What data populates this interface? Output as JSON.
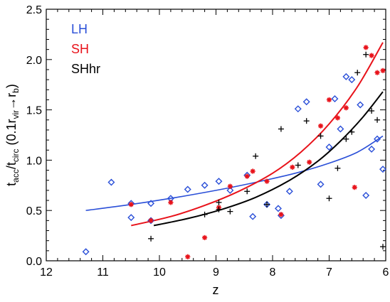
{
  "chart_data": {
    "type": "scatter",
    "title": "",
    "xlabel": "z",
    "ylabel": {
      "main": "t",
      "sub1": "acc",
      "slash": "/t",
      "sub2": "circ",
      "paren_open": " (0.1r",
      "sub3": "vir",
      "arrow": "→r",
      "sub4": "b",
      "paren_close": ")"
    },
    "xlim": [
      12,
      6
    ],
    "ylim": [
      0,
      2.5
    ],
    "xticks": [
      12,
      11,
      10,
      9,
      8,
      7,
      6
    ],
    "xtick_labels": [
      "12",
      "11",
      "10",
      "9",
      "8",
      "7",
      "6"
    ],
    "yticks": [
      0,
      0.5,
      1,
      1.5,
      2,
      2.5
    ],
    "ytick_labels": [
      "0.0",
      "0.5",
      "1.0",
      "1.5",
      "2.0",
      "2.5"
    ],
    "legend_position": "top-left",
    "series": [
      {
        "name": "LH",
        "color": "#2a4fd8",
        "marker": "diamond",
        "points": [
          [
            11.3,
            0.09
          ],
          [
            10.85,
            0.78
          ],
          [
            10.5,
            0.57
          ],
          [
            10.5,
            0.43
          ],
          [
            10.15,
            0.4
          ],
          [
            10.15,
            0.57
          ],
          [
            9.8,
            0.62
          ],
          [
            9.5,
            0.71
          ],
          [
            9.2,
            0.75
          ],
          [
            8.95,
            0.79
          ],
          [
            8.75,
            0.7
          ],
          [
            8.45,
            0.85
          ],
          [
            8.35,
            0.44
          ],
          [
            8.1,
            0.56
          ],
          [
            7.9,
            0.52
          ],
          [
            7.85,
            0.45
          ],
          [
            7.7,
            0.69
          ],
          [
            7.55,
            1.51
          ],
          [
            7.4,
            1.58
          ],
          [
            7.15,
            0.76
          ],
          [
            7.0,
            1.13
          ],
          [
            6.9,
            1.61
          ],
          [
            6.8,
            1.31
          ],
          [
            6.7,
            1.83
          ],
          [
            6.6,
            1.8
          ],
          [
            6.45,
            1.55
          ],
          [
            6.35,
            0.65
          ],
          [
            6.25,
            1.11
          ],
          [
            6.15,
            1.21
          ],
          [
            6.05,
            0.91
          ]
        ],
        "fit": [
          [
            11.3,
            0.5
          ],
          [
            10.5,
            0.56
          ],
          [
            9.7,
            0.63
          ],
          [
            9.0,
            0.7
          ],
          [
            8.3,
            0.78
          ],
          [
            7.6,
            0.87
          ],
          [
            7.0,
            0.97
          ],
          [
            6.5,
            1.08
          ],
          [
            6.05,
            1.24
          ]
        ]
      },
      {
        "name": "SH",
        "color": "#e8121a",
        "marker": "asterisk",
        "points": [
          [
            10.5,
            0.56
          ],
          [
            10.15,
            0.4
          ],
          [
            9.8,
            0.58
          ],
          [
            9.5,
            0.04
          ],
          [
            9.2,
            0.23
          ],
          [
            8.95,
            0.53
          ],
          [
            8.75,
            0.74
          ],
          [
            8.45,
            0.84
          ],
          [
            8.35,
            0.89
          ],
          [
            8.1,
            0.79
          ],
          [
            7.85,
            0.46
          ],
          [
            7.65,
            0.93
          ],
          [
            7.35,
            0.98
          ],
          [
            7.15,
            1.34
          ],
          [
            7.0,
            1.6
          ],
          [
            6.85,
            1.42
          ],
          [
            6.7,
            1.52
          ],
          [
            6.55,
            0.73
          ],
          [
            6.35,
            2.12
          ],
          [
            6.25,
            2.04
          ],
          [
            6.15,
            1.87
          ],
          [
            6.05,
            1.89
          ]
        ],
        "fit": [
          [
            10.5,
            0.35
          ],
          [
            9.8,
            0.44
          ],
          [
            9.2,
            0.55
          ],
          [
            8.6,
            0.69
          ],
          [
            8.0,
            0.87
          ],
          [
            7.5,
            1.08
          ],
          [
            7.0,
            1.36
          ],
          [
            6.5,
            1.73
          ],
          [
            6.05,
            2.17
          ]
        ]
      },
      {
        "name": "SHhr",
        "color": "#000000",
        "marker": "plus",
        "points": [
          [
            10.15,
            0.22
          ],
          [
            9.2,
            0.46
          ],
          [
            8.95,
            0.58
          ],
          [
            8.95,
            0.51
          ],
          [
            8.75,
            0.49
          ],
          [
            8.45,
            0.69
          ],
          [
            8.3,
            1.04
          ],
          [
            8.1,
            0.56
          ],
          [
            7.85,
            1.31
          ],
          [
            7.55,
            0.95
          ],
          [
            7.4,
            1.39
          ],
          [
            7.15,
            1.24
          ],
          [
            7.0,
            0.62
          ],
          [
            6.85,
            0.92
          ],
          [
            6.7,
            1.21
          ],
          [
            6.6,
            1.28
          ],
          [
            6.5,
            1.87
          ],
          [
            6.35,
            2.05
          ],
          [
            6.25,
            1.49
          ],
          [
            6.15,
            1.4
          ],
          [
            6.05,
            0.14
          ]
        ],
        "fit": [
          [
            10.1,
            0.35
          ],
          [
            9.5,
            0.42
          ],
          [
            8.9,
            0.51
          ],
          [
            8.3,
            0.63
          ],
          [
            7.7,
            0.8
          ],
          [
            7.2,
            0.99
          ],
          [
            6.8,
            1.19
          ],
          [
            6.4,
            1.43
          ],
          [
            6.05,
            1.68
          ]
        ]
      }
    ]
  }
}
